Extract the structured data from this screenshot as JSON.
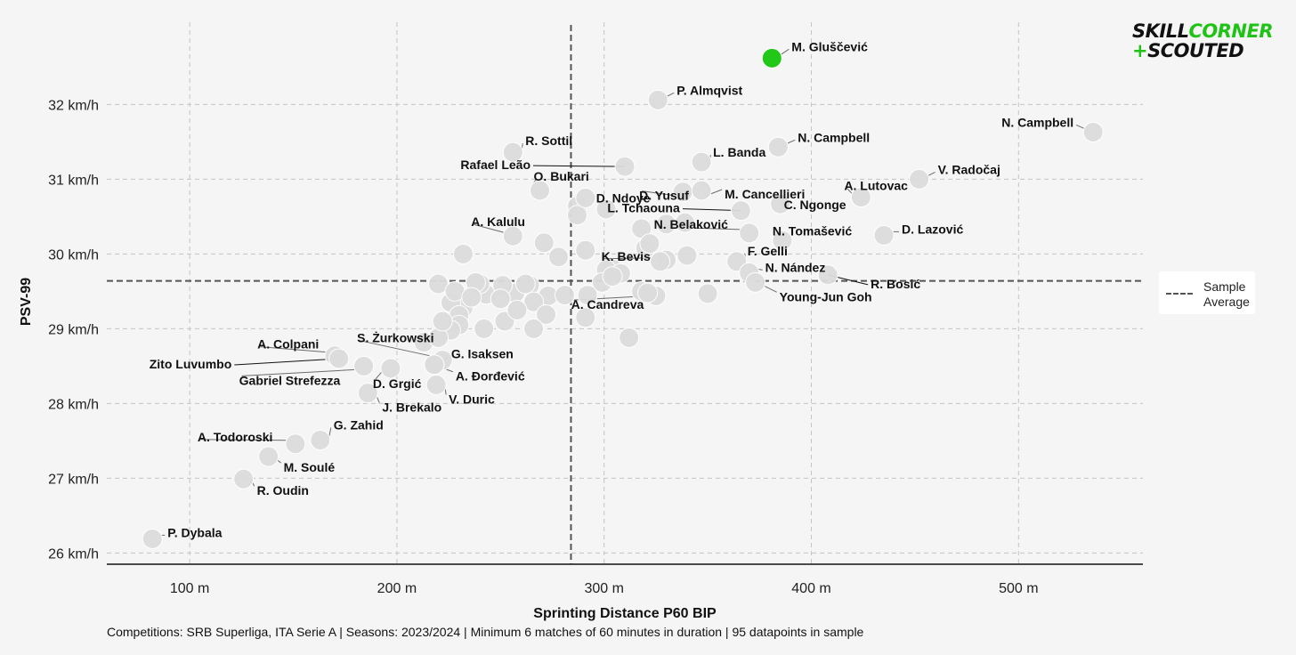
{
  "brand": {
    "part1": "SKILL",
    "part2": "CORNER",
    "plus": "+",
    "part3": "SCOUTED"
  },
  "legend": {
    "label": "Sample Average"
  },
  "footnote": "Competitions: SRB Superliga, ITA Serie A | Seasons: 2023/2024 | Minimum 6 matches of 60 minutes in duration | 95 datapoints in sample",
  "colors": {
    "background": "#f5f5f5",
    "point": "#dcdcdc",
    "point_stroke": "#ffffff",
    "highlight": "#16c60c",
    "grid": "#c4c4c4",
    "average_line": "#555555"
  },
  "chart_data": {
    "type": "scatter",
    "title": "",
    "xlabel": "Sprinting Distance P60 BIP",
    "ylabel": "PSV-99",
    "xlim": [
      60,
      560
    ],
    "ylim": [
      25.85,
      33.1
    ],
    "x_ticks": [
      100,
      200,
      300,
      400,
      500
    ],
    "x_tick_labels": [
      "100 m",
      "200 m",
      "300 m",
      "400 m",
      "500 m"
    ],
    "y_ticks": [
      26,
      27,
      28,
      29,
      30,
      31,
      32
    ],
    "y_tick_labels": [
      "26 km/h",
      "27 km/h",
      "28 km/h",
      "29 km/h",
      "30 km/h",
      "31 km/h",
      "32 km/h"
    ],
    "grid": true,
    "average": {
      "x": 284,
      "y": 29.64,
      "label": "Sample Average"
    },
    "highlight": {
      "name": "M. Gluščević",
      "x": 381,
      "y": 32.62
    },
    "labeled_points": [
      {
        "name": "P. Almqvist",
        "x": 326,
        "y": 32.06
      },
      {
        "name": "N. Campbell",
        "x": 384,
        "y": 31.43
      },
      {
        "name": "N. Campbell",
        "x": 536,
        "y": 31.63
      },
      {
        "name": "L. Banda",
        "x": 347,
        "y": 31.23
      },
      {
        "name": "R. Sottil",
        "x": 256,
        "y": 31.36
      },
      {
        "name": "Rafael Leão",
        "x": 310,
        "y": 31.17
      },
      {
        "name": "V. Radočaj",
        "x": 452,
        "y": 31.0
      },
      {
        "name": "O. Bukari",
        "x": 269,
        "y": 30.85
      },
      {
        "name": "D. Yusuf",
        "x": 338,
        "y": 30.83
      },
      {
        "name": "M. Cancellieri",
        "x": 347,
        "y": 30.85
      },
      {
        "name": "A. Lutovac",
        "x": 424,
        "y": 30.76
      },
      {
        "name": "D. Ndoye",
        "x": 291,
        "y": 30.75
      },
      {
        "name": "C. Ngonge",
        "x": 385,
        "y": 30.67
      },
      {
        "name": "L. Tchaouna",
        "x": 366,
        "y": 30.58
      },
      {
        "name": "A. Kalulu",
        "x": 256,
        "y": 30.24
      },
      {
        "name": "N. Belaković",
        "x": 370,
        "y": 30.28
      },
      {
        "name": "N. Tomašević",
        "x": 386,
        "y": 30.18
      },
      {
        "name": "D. Lazović",
        "x": 435,
        "y": 30.25
      },
      {
        "name": "K. Bevis",
        "x": 327,
        "y": 29.9
      },
      {
        "name": "F. Gelli",
        "x": 364,
        "y": 29.9
      },
      {
        "name": "N. Nández",
        "x": 370,
        "y": 29.75
      },
      {
        "name": "R. Bosić",
        "x": 408,
        "y": 29.72
      },
      {
        "name": "A. Candreva",
        "x": 321,
        "y": 29.48
      },
      {
        "name": "Young-Jun Goh",
        "x": 373,
        "y": 29.62
      },
      {
        "name": "A. Colpani",
        "x": 170,
        "y": 28.64
      },
      {
        "name": "Zito Luvumbo",
        "x": 172,
        "y": 28.6
      },
      {
        "name": "S. Żurkowski",
        "x": 222,
        "y": 28.58
      },
      {
        "name": "G. Isaksen",
        "x": 218,
        "y": 28.52
      },
      {
        "name": "Gabriel Strefezza",
        "x": 184,
        "y": 28.5
      },
      {
        "name": "D. Grgić",
        "x": 197,
        "y": 28.47
      },
      {
        "name": "A. Đorđević",
        "x": 218,
        "y": 28.52
      },
      {
        "name": "V. Duric",
        "x": 219,
        "y": 28.25
      },
      {
        "name": "J. Brekalo",
        "x": 186,
        "y": 28.14
      },
      {
        "name": "A. Todoroski",
        "x": 151,
        "y": 27.46
      },
      {
        "name": "G. Zahid",
        "x": 163,
        "y": 27.51
      },
      {
        "name": "M. Soulé",
        "x": 138,
        "y": 27.29
      },
      {
        "name": "R. Oudin",
        "x": 126,
        "y": 26.99
      },
      {
        "name": "P. Dybala",
        "x": 82,
        "y": 26.19
      }
    ],
    "other_points": [
      [
        287,
        30.64
      ],
      [
        301,
        30.6
      ],
      [
        330,
        30.4
      ],
      [
        339,
        30.42
      ],
      [
        318,
        30.34
      ],
      [
        320,
        30.08
      ],
      [
        322,
        30.14
      ],
      [
        330,
        29.92
      ],
      [
        340,
        29.98
      ],
      [
        304,
        29.8
      ],
      [
        301,
        29.79
      ],
      [
        308,
        29.74
      ],
      [
        299,
        29.62
      ],
      [
        318,
        29.5
      ],
      [
        325,
        29.44
      ],
      [
        350,
        29.47
      ],
      [
        304,
        29.7
      ],
      [
        273,
        29.44
      ],
      [
        278,
        29.96
      ],
      [
        291,
        30.05
      ],
      [
        271,
        30.15
      ],
      [
        264,
        29.58
      ],
      [
        266,
        29.36
      ],
      [
        272,
        29.19
      ],
      [
        266,
        29.0
      ],
      [
        281,
        29.45
      ],
      [
        291,
        29.15
      ],
      [
        257,
        29.48
      ],
      [
        252,
        29.1
      ],
      [
        243,
        29.46
      ],
      [
        240,
        29.6
      ],
      [
        251,
        29.58
      ],
      [
        232,
        29.28
      ],
      [
        226,
        29.35
      ],
      [
        230,
        29.18
      ],
      [
        242,
        29.0
      ],
      [
        220,
        29.6
      ],
      [
        230,
        29.05
      ],
      [
        226,
        28.98
      ],
      [
        213,
        28.82
      ],
      [
        220,
        28.88
      ],
      [
        232,
        30.0
      ],
      [
        312,
        28.88
      ],
      [
        287,
        30.52
      ],
      [
        292,
        29.45
      ],
      [
        258,
        29.25
      ],
      [
        238,
        29.62
      ],
      [
        222,
        29.1
      ],
      [
        262,
        29.6
      ],
      [
        250,
        29.4
      ],
      [
        228,
        29.5
      ],
      [
        236,
        29.42
      ]
    ]
  }
}
